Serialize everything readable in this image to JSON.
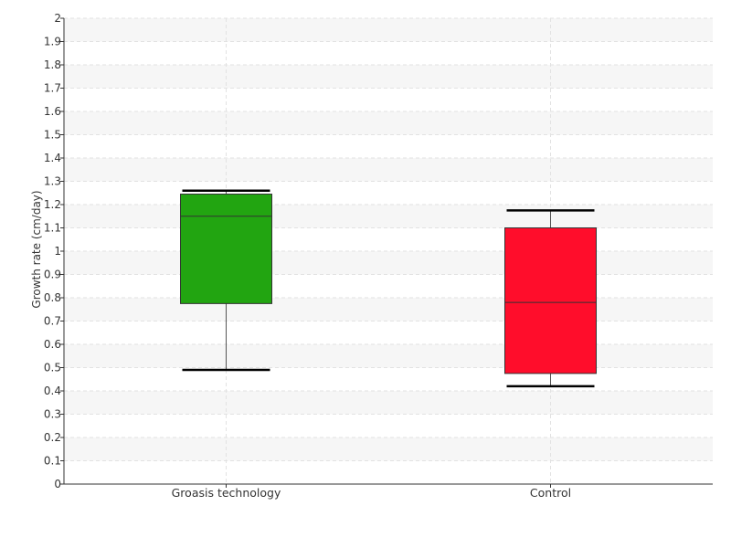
{
  "chart_data": {
    "type": "box",
    "title": "",
    "xlabel": "",
    "ylabel": "Growth rate (cm/day)",
    "ylim": [
      0,
      2
    ],
    "yticks": [
      0,
      0.1,
      0.2,
      0.3,
      0.4,
      0.5,
      0.6,
      0.7,
      0.8,
      0.9,
      1,
      1.1,
      1.2,
      1.3,
      1.4,
      1.5,
      1.6,
      1.7,
      1.8,
      1.9,
      2
    ],
    "ytick_labels": [
      "0",
      "0.1",
      "0.2",
      "0.3",
      "0.4",
      "0.5",
      "0.6",
      "0.7",
      "0.8",
      "0.9",
      "1",
      "1.1",
      "1.2",
      "1.3",
      "1.4",
      "1.5",
      "1.6",
      "1.7",
      "1.8",
      "1.9",
      "2"
    ],
    "grid": true,
    "categories": [
      "Groasis technology",
      "Control"
    ],
    "boxes": [
      {
        "category": "Groasis technology",
        "whisker_low": 0.49,
        "q1": 0.775,
        "median": 1.15,
        "q3": 1.245,
        "whisker_high": 1.26,
        "color": "#22a511"
      },
      {
        "category": "Control",
        "whisker_low": 0.42,
        "q1": 0.475,
        "median": 0.78,
        "q3": 1.1,
        "whisker_high": 1.175,
        "color": "#ff0d2b"
      }
    ]
  }
}
